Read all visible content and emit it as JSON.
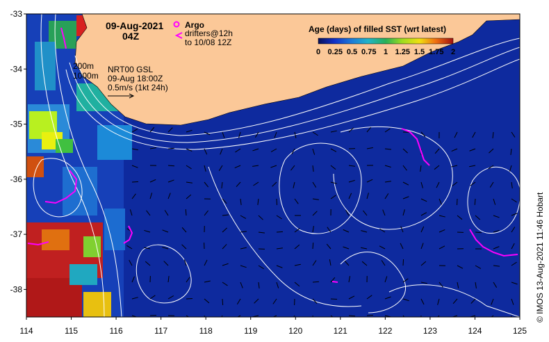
{
  "map": {
    "date_title": "09-Aug-2021",
    "time_title": "04Z",
    "argo_label": "Argo",
    "drifters_line1": "drifters@12h",
    "drifters_line2": "to 10/08 12Z",
    "contour_200": "200m",
    "contour_1000": "1000m",
    "product": "NRT00 GSL",
    "product_time": "09-Aug 18:00Z",
    "vector_scale": "0.5m/s (1kt 24h)",
    "credit": "© IMOS 13-Aug-2021 11:46 Hobart",
    "colorbar": {
      "title": "Age (days) of filled SST (wrt latest)",
      "tick_labels": [
        "0",
        "0.25",
        "0.5",
        "0.75",
        "1",
        "1.25",
        "1.5",
        "1.75",
        "2"
      ],
      "range": [
        0,
        2
      ]
    },
    "x_axis": {
      "labels": [
        "114",
        "115",
        "116",
        "117",
        "118",
        "119",
        "120",
        "121",
        "122",
        "123",
        "124",
        "125"
      ],
      "range": [
        114,
        125
      ]
    },
    "y_axis": {
      "labels": [
        "-33",
        "-34",
        "-35",
        "-36",
        "-37",
        "-38"
      ],
      "range": [
        -38.5,
        -33
      ]
    },
    "colors": {
      "land": "#FBC898",
      "ocean": "#0E2A9E",
      "argo_marker": "#FF00FF",
      "drifter": "#FF00FF",
      "contour": "#FFFFFF"
    }
  }
}
